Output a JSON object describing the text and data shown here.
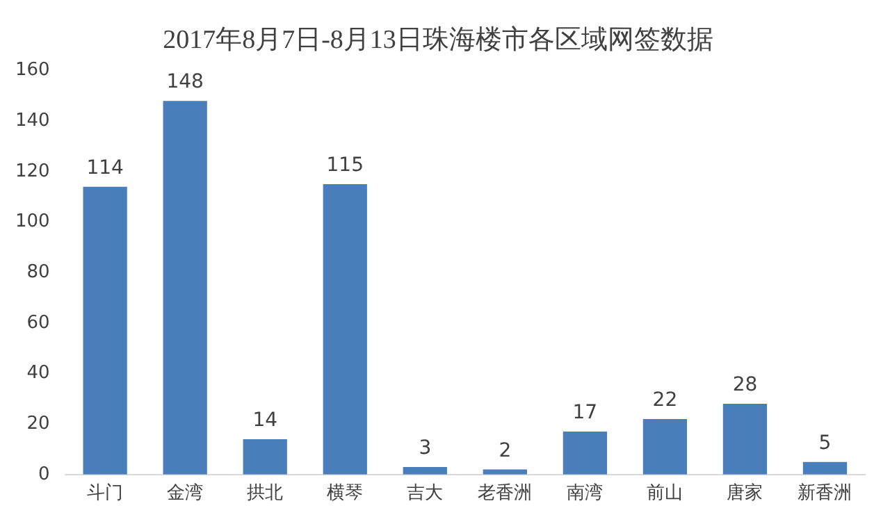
{
  "chart_data": {
    "type": "bar",
    "title": "2017年8月7日-8月13日珠海楼市各区域网签数据",
    "categories": [
      "斗门",
      "金湾",
      "拱北",
      "横琴",
      "吉大",
      "老香洲",
      "南湾",
      "前山",
      "唐家",
      "新香洲"
    ],
    "values": [
      114,
      148,
      14,
      115,
      3,
      2,
      17,
      22,
      28,
      5
    ],
    "color": "#4a7ebb",
    "ylim": [
      0,
      160
    ],
    "yticks": [
      0,
      20,
      40,
      60,
      80,
      100,
      120,
      140,
      160
    ],
    "grid": false,
    "data_labels": true,
    "legend": false
  }
}
